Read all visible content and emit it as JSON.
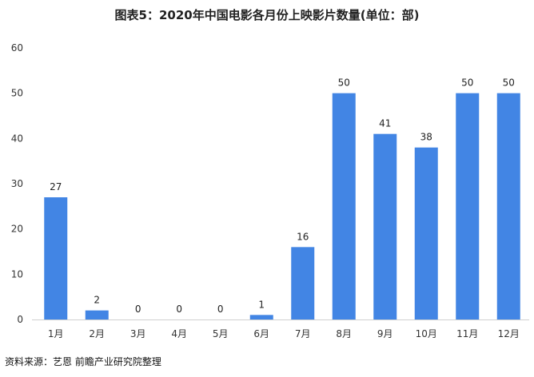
{
  "chart_data": {
    "type": "bar",
    "title": "图表5：2020年中国电影各月份上映影片数量(单位：部)",
    "categories": [
      "1月",
      "2月",
      "3月",
      "4月",
      "5月",
      "6月",
      "7月",
      "8月",
      "9月",
      "10月",
      "11月",
      "12月"
    ],
    "values": [
      27,
      2,
      0,
      0,
      0,
      1,
      16,
      50,
      41,
      38,
      50,
      50
    ],
    "ylim": [
      0,
      60
    ],
    "yticks": [
      "0",
      "10",
      "20",
      "30",
      "40",
      "50",
      "60"
    ],
    "grid": false,
    "legend": "none",
    "bar_color": "#4285e4"
  },
  "source": "资料来源：艺恩 前瞻产业研究院整理"
}
